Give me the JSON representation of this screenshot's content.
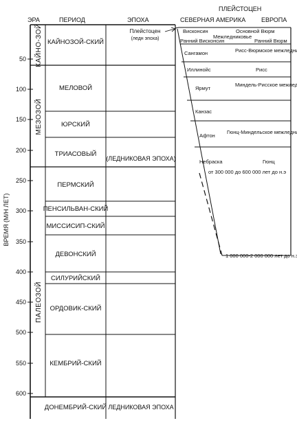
{
  "header": {
    "era": "ЭРА",
    "period": "ПЕРИОД",
    "epoch": "ЭПОХА",
    "pleistocene": "ПЛЕЙСТОЦЕН",
    "north_america": "СЕВЕРНАЯ АМЕРИКА",
    "europe": "ЕВРОПА"
  },
  "axis": {
    "label": "ВРЕМЯ (М/Н ЛЕТ)",
    "ticks": [
      "50",
      "100",
      "150",
      "200",
      "250",
      "300",
      "350",
      "400",
      "450",
      "500",
      "550",
      "600"
    ]
  },
  "eras": {
    "cenozoic": "КАЙНО-ЗОЙ",
    "mesozoic": "МЕЗОЗОЙ",
    "paleozoic": "ПАЛЕОЗОЙ"
  },
  "periods": {
    "cenozoic": "КАЙНОЗОЙ-СКИЙ",
    "cretaceous": "МЕЛОВОЙ",
    "jurassic": "ЮРСКИЙ",
    "triassic": "ТРИАСОВЫЙ",
    "permian": "ПЕРМСКИЙ",
    "pennsylvanian": "ПЕНСИЛЬВАН-СКИЙ",
    "mississippian": "МИССИСИП-СКИЙ",
    "devonian": "ДЕВОНСКИЙ",
    "silurian": "СИЛУРИЙСКИЙ",
    "ordovician": "ОРДОВИК-СКИЙ",
    "cambrian": "КЕМБРИЙ-СКИЙ",
    "precambrian": "ДОНЕМБРИЙ-СКИЙ"
  },
  "epochs": {
    "pleistocene": "Плейстоцен",
    "pleistocene_note": "(ледн эпоха)",
    "glacial": "(ЛЕДНИКОВАЯ ЭПОХА)",
    "glacial_bottom": "ЛЕДНИКОВАЯ ЭПОХА"
  },
  "pleistocene_detail": {
    "wisconsin": "Висконсин",
    "main_wurm": "Основной Вюрм",
    "interglacial_1": "Межледниковье",
    "early_wisconsin": "Ранний Висконсин",
    "early_wurm": "Ранний Вюрм",
    "sangamon": "Сангамон",
    "riss_wurm": "Рисс-Вюрмское межледниковье",
    "illinoian": "Иллинойс",
    "riss": "Рисс",
    "yarmouth": "Ярмут",
    "mindel_riss": "Миндель-Рисское межледниковье",
    "kansan": "Канзас",
    "aftonian": "Афтон",
    "gunz_mindel": "Гюнц-Миндельское межледниковье",
    "nebraskan": "Небраска",
    "gunz": "Гюнц",
    "range_top": "от 300 000 до 600 000 лет до н.э",
    "range_bottom": "1 000 000-2 000 000 лет до н.э"
  }
}
